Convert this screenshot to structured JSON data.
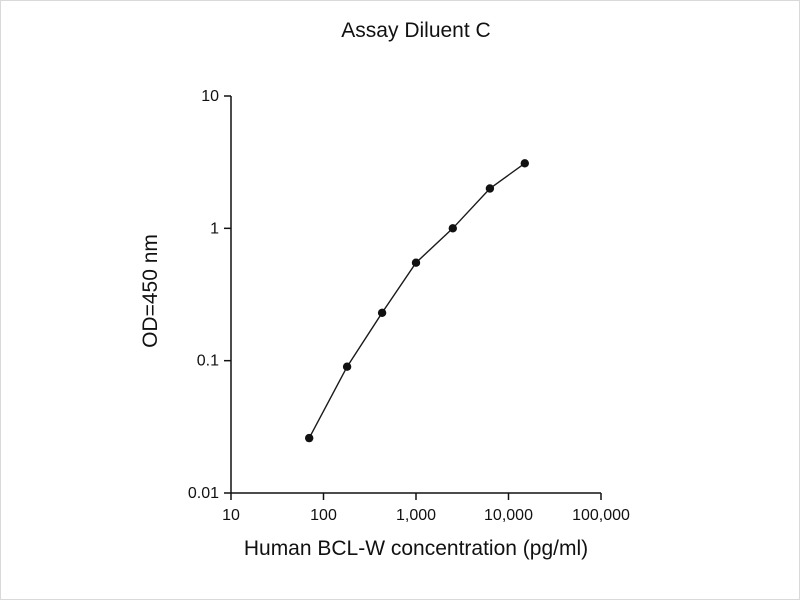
{
  "chart_data": {
    "type": "line",
    "title": "Assay Diluent C",
    "xlabel": "Human BCL-W concentration (pg/ml)",
    "ylabel": "OD=450 nm",
    "xscale": "log",
    "yscale": "log",
    "xlim": [
      10,
      100000
    ],
    "ylim": [
      0.01,
      10
    ],
    "grid": false,
    "legend": "none",
    "axis_color": "#111111",
    "line_color": "#1a1a1a",
    "marker_color": "#111111",
    "x_ticks": [
      {
        "label": "10",
        "value": 10
      },
      {
        "label": "100",
        "value": 100
      },
      {
        "label": "1,000",
        "value": 1000
      },
      {
        "label": "10,000",
        "value": 10000
      },
      {
        "label": "100,000",
        "value": 100000
      }
    ],
    "y_ticks": [
      {
        "label": "0.01",
        "value": 0.01
      },
      {
        "label": "0.1",
        "value": 0.1
      },
      {
        "label": "1",
        "value": 1
      },
      {
        "label": "10",
        "value": 10
      }
    ],
    "points": [
      {
        "x": 70,
        "y": 0.026
      },
      {
        "x": 180,
        "y": 0.09
      },
      {
        "x": 430,
        "y": 0.23
      },
      {
        "x": 1000,
        "y": 0.55
      },
      {
        "x": 2500,
        "y": 1.0
      },
      {
        "x": 6300,
        "y": 2.0
      },
      {
        "x": 15000,
        "y": 3.1
      }
    ]
  }
}
